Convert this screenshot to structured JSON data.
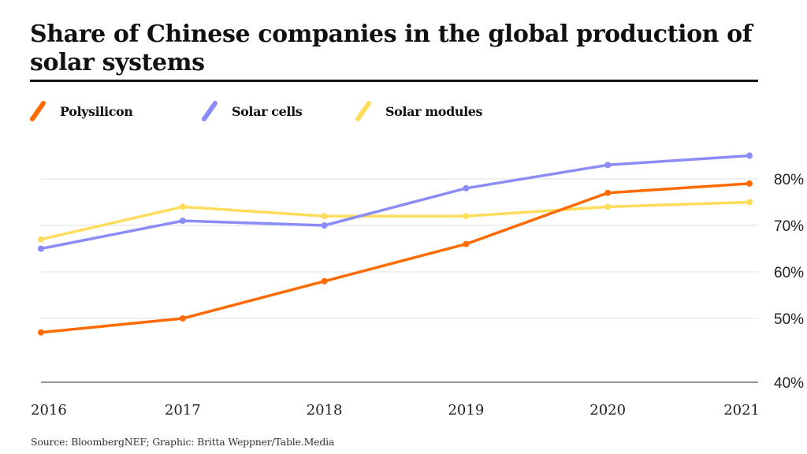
{
  "title": "Share of Chinese companies in the global production of solar systems",
  "source": "Source: BloombergNEF; Graphic: Britta Weppner/Table.Media",
  "colors": {
    "polysilicon": "#ff6b00",
    "solar_cells": "#8b8cf8",
    "solar_modules": "#ffdd5c",
    "grid": "#e0e0e0",
    "baseline": "#555555",
    "title_rule": "#111111"
  },
  "chart_data": {
    "type": "line",
    "title": "Share of Chinese companies in the global production of solar systems",
    "xlabel": "",
    "ylabel": "",
    "x": [
      "2016",
      "2017",
      "2018",
      "2019",
      "2020",
      "2021"
    ],
    "series": [
      {
        "name": "Polysilicon",
        "color": "#ff6b00",
        "values": [
          47,
          50,
          58,
          66,
          77,
          79
        ]
      },
      {
        "name": "Solar cells",
        "color": "#8b8cf8",
        "values": [
          65,
          71,
          70,
          78,
          83,
          85
        ]
      },
      {
        "name": "Solar modules",
        "color": "#ffdd5c",
        "values": [
          67,
          74,
          72,
          72,
          74,
          75
        ]
      }
    ],
    "y_ticks": [
      {
        "value": 80,
        "label": "80%"
      },
      {
        "value": 70,
        "label": "70%"
      },
      {
        "value": 60,
        "label": "60%"
      },
      {
        "value": 50,
        "label": "50%"
      },
      {
        "value": 40,
        "label": "40%"
      }
    ],
    "ylim": [
      40,
      85
    ],
    "y_axis_side": "right",
    "grid": true,
    "legend_position": "top-left",
    "markers": true
  }
}
